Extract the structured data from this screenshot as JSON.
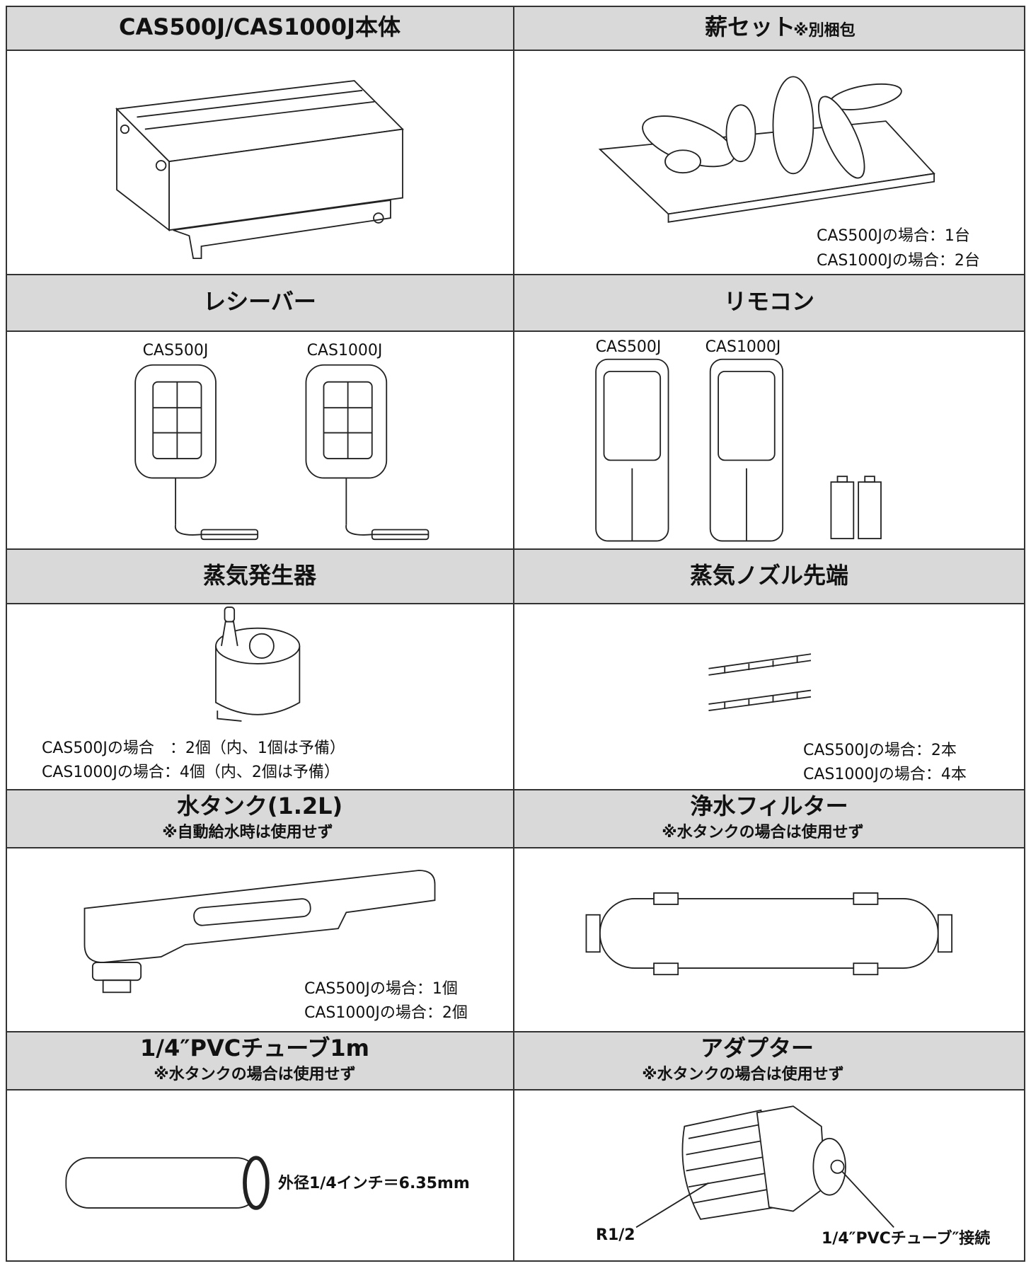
{
  "items": [
    {
      "title": "CAS500J/CAS1000J本体"
    },
    {
      "title": "薪セット",
      "title_note": "※別梱包",
      "notes": [
        "CAS500Jの場合：1台",
        "CAS1000Jの場合：2台"
      ]
    },
    {
      "title": "レシーバー",
      "labels": [
        "CAS500J",
        "CAS1000J"
      ]
    },
    {
      "title": "リモコン",
      "labels": [
        "CAS500J",
        "CAS1000J"
      ]
    },
    {
      "title": "蒸気発生器",
      "notes": [
        "CAS500Jの場合　：2個（内、1個は予備）",
        "CAS1000Jの場合：4個（内、2個は予備）"
      ]
    },
    {
      "title": "蒸気ノズル先端",
      "notes": [
        "CAS500Jの場合：2本",
        "CAS1000Jの場合：4本"
      ]
    },
    {
      "title": "水タンク(1.2L)",
      "subtitle": "※自動給水時は使用せず",
      "notes": [
        "CAS500Jの場合：1個",
        "CAS1000Jの場合：2個"
      ]
    },
    {
      "title": "浄水フィルター",
      "subtitle": "※水タンクの場合は使用せず"
    },
    {
      "title": "1/4″PVCチューブ1m",
      "subtitle": "※水タンクの場合は使用せず",
      "labels": [
        "外径1/4インチ＝6.35mm"
      ]
    },
    {
      "title": "アダプター",
      "subtitle": "※水タンクの場合は使用せず",
      "labels": [
        "R1/2",
        "1/4″PVCチューブ″接続"
      ]
    }
  ]
}
